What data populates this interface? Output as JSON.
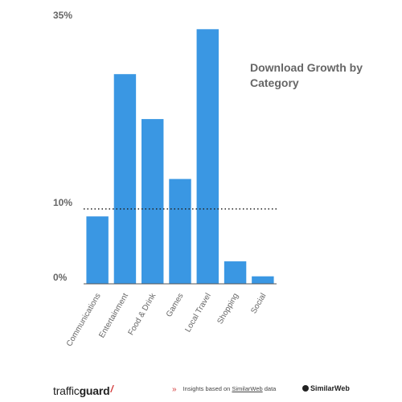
{
  "chart_data": {
    "type": "bar",
    "title": "Download Growth by Category",
    "categories": [
      "Communications",
      "Entertainment",
      "Food & Drink",
      "Games",
      "Local Travel",
      "Shopping",
      "Social"
    ],
    "values": [
      9,
      28,
      22,
      14,
      34,
      3,
      1
    ],
    "ytick_labels": [
      "0%",
      "10%",
      "35%"
    ],
    "yticks": [
      0,
      10,
      35
    ],
    "ylim": [
      0,
      35
    ],
    "reference_line": 10,
    "grid": false,
    "legend": "none",
    "bar_color": "#3a97e3"
  },
  "footer": {
    "brand_main": "traffic",
    "brand_bold": "guard",
    "brand_mark": "/",
    "note_prefix": "Insights based on",
    "note_source": "SimilarWeb",
    "note_suffix": "data",
    "chevron": "»",
    "partner_logo": "SimilarWeb"
  },
  "colors": {
    "bars": "#3a97e3",
    "labels": "#666666",
    "axis": "#555555",
    "accent": "#d33b3b"
  }
}
